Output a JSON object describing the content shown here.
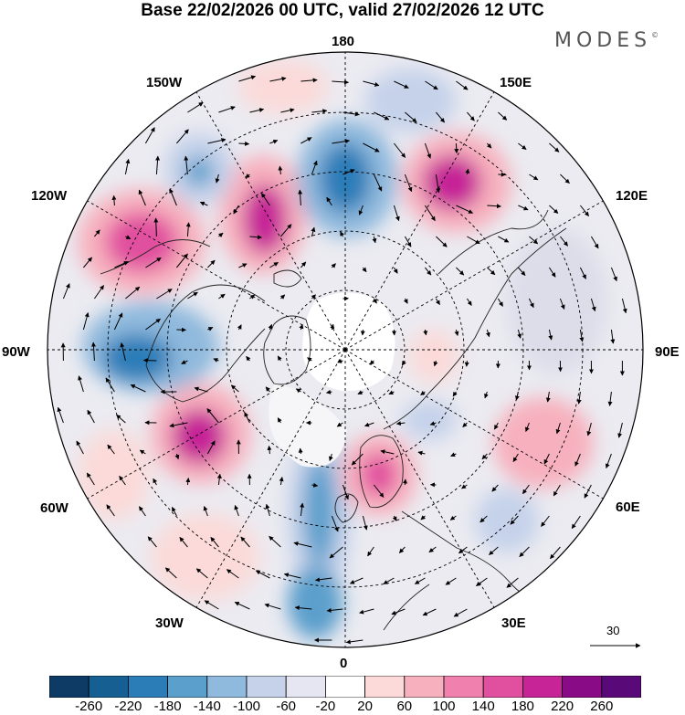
{
  "title": "Base 22/02/2026 00 UTC, valid 27/02/2026 12 UTC",
  "logo": {
    "text": "MODES",
    "mark": "©"
  },
  "longitude_labels": {
    "lon_180": "180",
    "lon_150e": "150E",
    "lon_120e": "120E",
    "lon_90e": "90E",
    "lon_60e": "60E",
    "lon_30e": "30E",
    "lon_0": "0",
    "lon_30w": "30W",
    "lon_60w": "60W",
    "lon_90w": "90W",
    "lon_120w": "120W",
    "lon_150w": "150W"
  },
  "reference_vector": {
    "value": "30"
  },
  "colorbar": {
    "ticks": [
      "-260",
      "-220",
      "-180",
      "-140",
      "-100",
      "-60",
      "-20",
      "20",
      "60",
      "100",
      "140",
      "180",
      "220",
      "260"
    ],
    "colors": [
      "#0d3b66",
      "#155f93",
      "#2b7db8",
      "#5b9fcc",
      "#8fb9dd",
      "#c5d2ea",
      "#e6e6f2",
      "#ffffff",
      "#fbdad9",
      "#f7b0bd",
      "#f081ae",
      "#e14f9f",
      "#c62497",
      "#8a0b86",
      "#5a0a78"
    ]
  },
  "colors": {
    "land_outline": "#1f1f1f",
    "grid": "#000000",
    "arrow": "#000000"
  }
}
